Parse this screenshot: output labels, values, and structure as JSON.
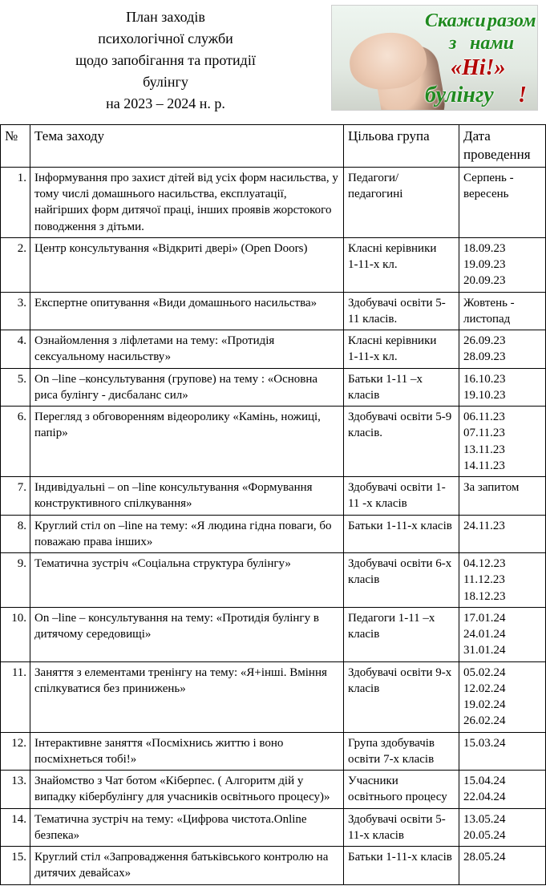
{
  "header": {
    "line1": "План заходів",
    "line2": "психологічної служби",
    "line3": "щодо запобігання та протидії",
    "line4": "булінгу",
    "line5": "на 2023 – 2024 н. р."
  },
  "banner": {
    "w1": "Скажи",
    "w2": "разом",
    "w3": "з",
    "w4": "нами",
    "w5": "«Ні!»",
    "w6": "булінгу",
    "w7": "!"
  },
  "table": {
    "headers": {
      "num": "№",
      "topic": "Тема заходу",
      "group": "Цільова група",
      "date": "Дата проведення"
    },
    "rows": [
      {
        "num": "1.",
        "topic": "Інформування про захист дітей від усіх форм насильства, у тому числі домашнього насильства, експлуатації, найгірших форм дитячої праці, інших проявів жорстокого поводження з дітьми.",
        "group": "Педагоги/\nпедагогині",
        "date": "Серпень - вересень"
      },
      {
        "num": "2.",
        "topic": "Центр консультування «Відкриті двері» (Open Doors)",
        "group": "Класні керівники\n 1-11-х кл.",
        "date": "18.09.23\n19.09.23\n20.09.23"
      },
      {
        "num": "3.",
        "topic": "Експертне опитування «Види домашнього насильства»",
        "group": "Здобувачі освіти 5-11 класів.",
        "date": "Жовтень - листопад"
      },
      {
        "num": "4.",
        "topic": "Ознайомлення з ліфлетами на тему: «Протидія сексуальному насильству»",
        "group": "Класні керівники\n 1-11-х кл.",
        "date": "26.09.23\n28.09.23"
      },
      {
        "num": "5.",
        "topic": "On –line –консультування (групове) на тему : «Основна риса булінгу - дисбаланс сил»",
        "group": "Батьки 1-11 –х класів",
        "date": "16.10.23\n19.10.23"
      },
      {
        "num": "6.",
        "topic": "Перегляд з обговоренням відеоролику «Камінь, ножиці, папір»",
        "group": "Здобувачі освіти 5-9 класів.",
        "date": "06.11.23\n07.11.23\n13.11.23\n14.11.23"
      },
      {
        "num": "7.",
        "topic": "Індивідуальні  – on –line консультування «Формування конструктивного спілкування»",
        "group": "Здобувачі освіти 1-11 -х класів",
        "date": "За запитом"
      },
      {
        "num": "8.",
        "topic": "Круглий стіл on –line  на тему: «Я людина гідна поваги, бо поважаю права інших»",
        "group": "Батьки 1-11-х класів",
        "date": "24.11.23"
      },
      {
        "num": "9.",
        "topic": " Тематична зустріч «Соціальна структура булінгу»",
        "group": "Здобувачі освіти 6-х класів",
        "date": "04.12.23\n11.12.23\n18.12.23"
      },
      {
        "num": "10.",
        "topic": "On –line – консультування на тему: «Протидія булінгу в дитячому середовищі»",
        "group": "Педагоги 1-11 –х класів",
        "date": "17.01.24\n24.01.24\n31.01.24"
      },
      {
        "num": "11.",
        "topic": "Заняття з елементами тренінгу  на тему:  «Я+інші. Вміння спілкуватися без принижень»",
        "group": "Здобувачі освіти 9-х класів",
        "date": "05.02.24\n12.02.24\n19.02.24\n26.02.24"
      },
      {
        "num": "12.",
        "topic": "Інтерактивне заняття  «Посміхнись життю і воно посміхнеться тобі!»",
        "group": "Група здобувачів освіти  7-х класів",
        "date": "15.03.24"
      },
      {
        "num": "13.",
        "topic": "Знайомство з Чат ботом «Кіберпес. ( Алгоритм дій у випадку кібербулінгу для учасників освітнього процесу)»",
        "group": "Учасники освітнього процесу",
        "date": "15.04.24\n22.04.24"
      },
      {
        "num": "14.",
        "topic": "Тематична зустріч на тему: «Цифрова чистота.Online безпека»",
        "group": "Здобувачі освіти 5-11-х класів",
        "date": "13.05.24\n20.05.24"
      },
      {
        "num": "15.",
        "topic": " Круглий стіл «Запровадження батьківського контролю на дитячих девайсах»",
        "group": "Батьки 1-11-х класів",
        "date": "28.05.24"
      }
    ]
  }
}
